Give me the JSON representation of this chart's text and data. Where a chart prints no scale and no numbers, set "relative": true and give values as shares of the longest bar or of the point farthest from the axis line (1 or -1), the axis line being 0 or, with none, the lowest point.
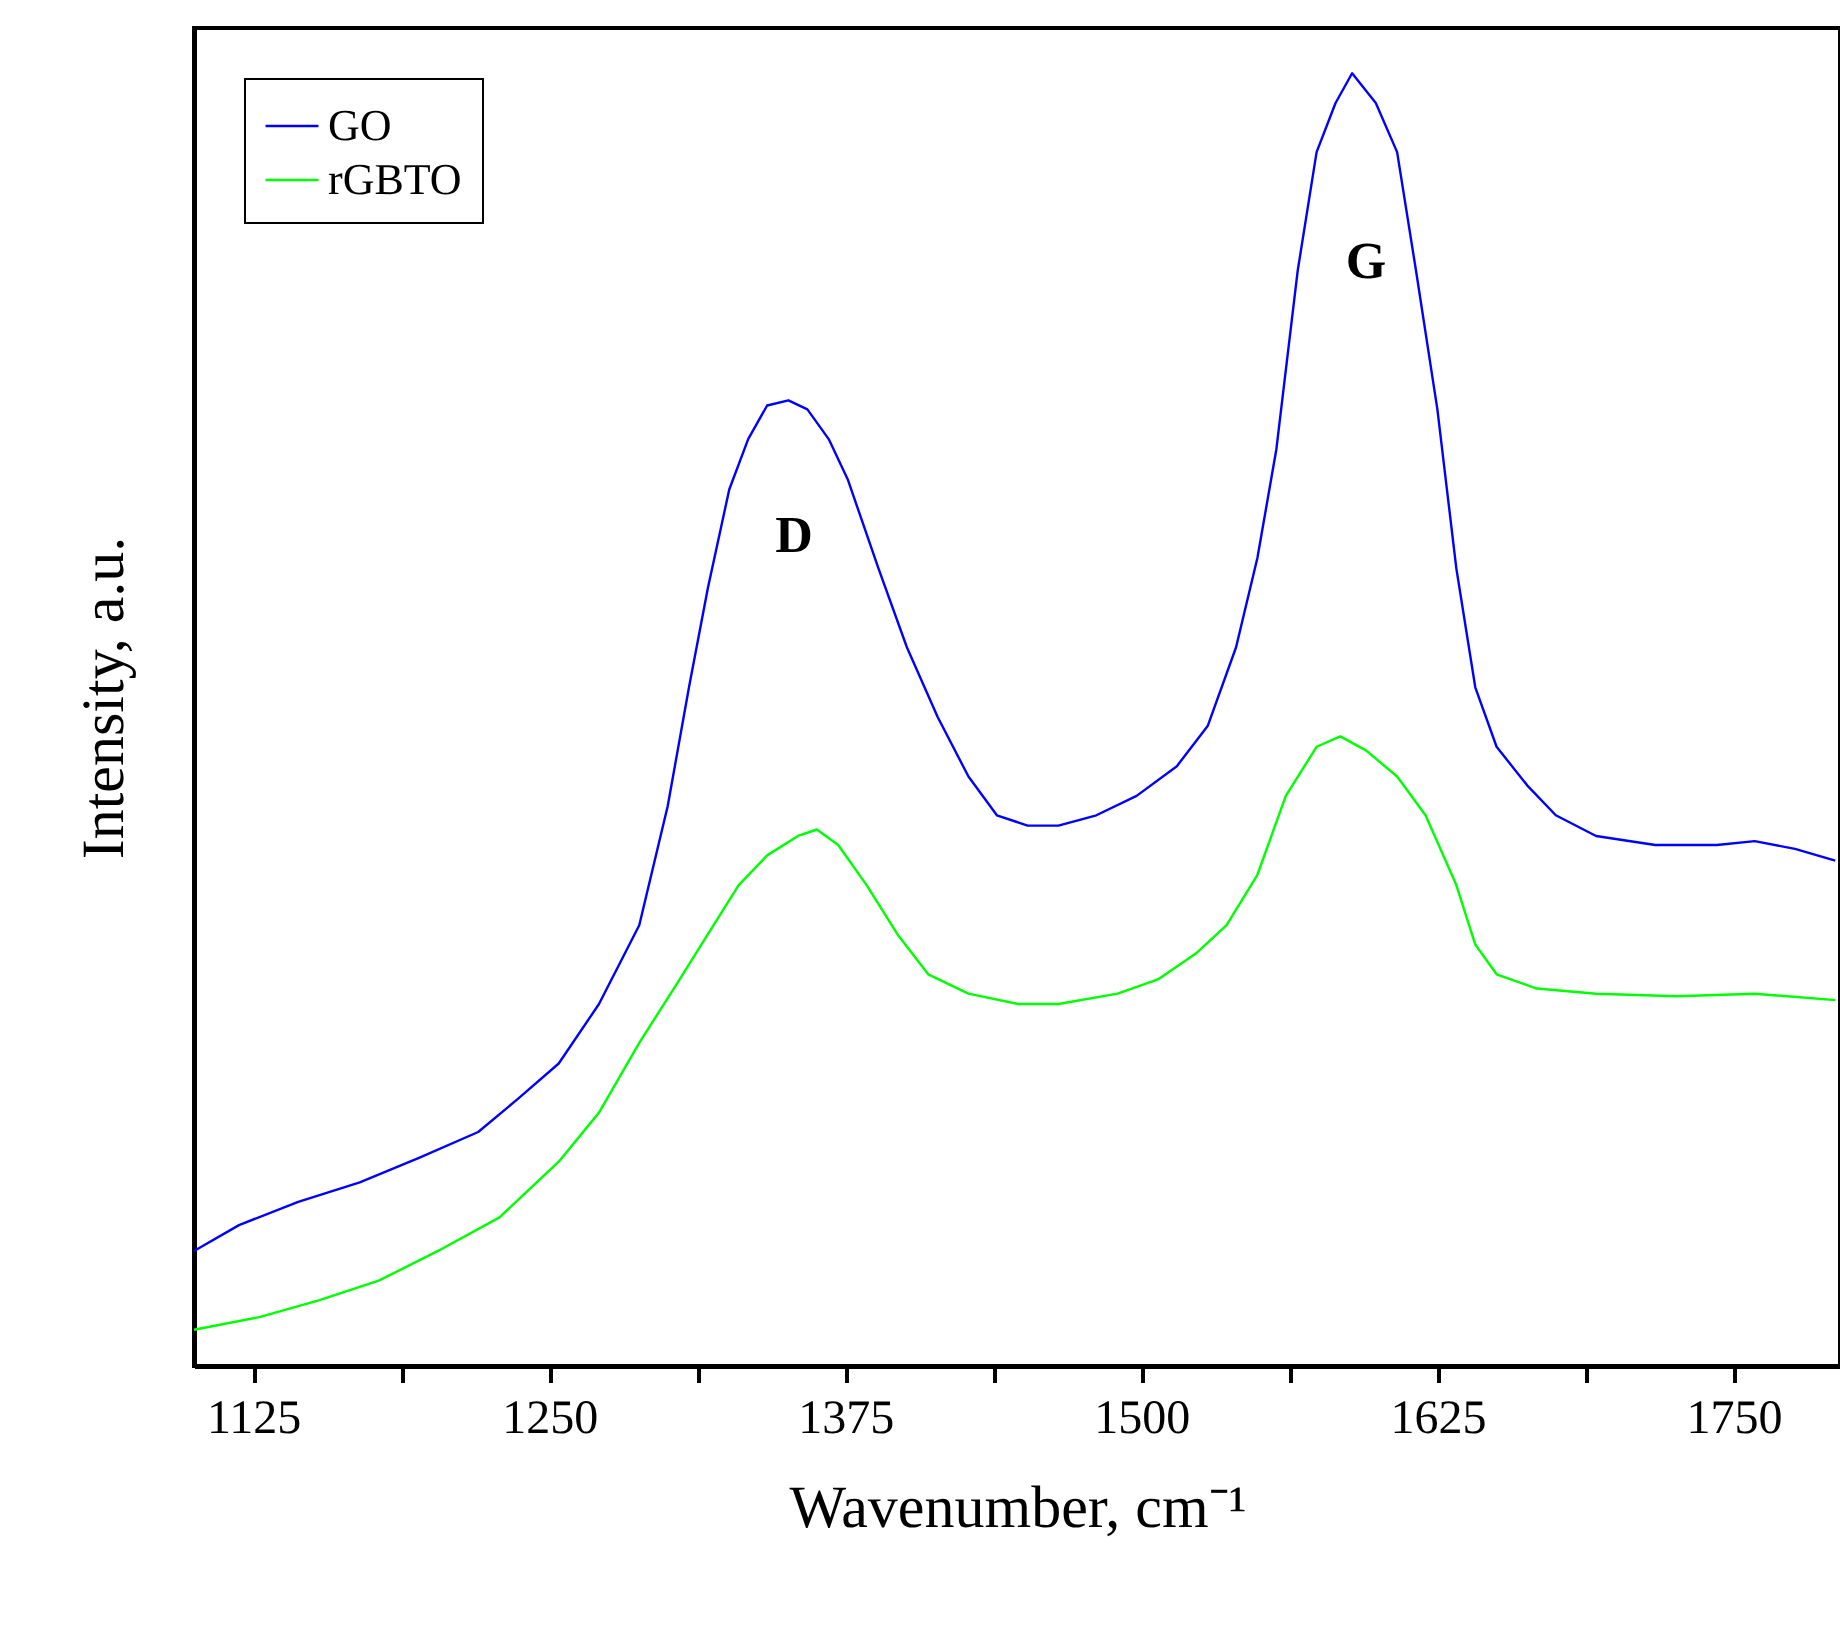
{
  "chart_data": {
    "type": "line",
    "relative": true,
    "xlabel": "Wavenumber, cm⁻¹",
    "ylabel": "Intensity, a.u.",
    "xlim": [
      1100,
      1795
    ],
    "xticks": [
      1125,
      {
        "value": 1187.5,
        "label": null
      },
      1250,
      {
        "value": 1312.5,
        "label": null
      },
      1375,
      {
        "value": 1437.5,
        "label": null
      },
      1500,
      {
        "value": 1562.5,
        "label": null
      },
      1625,
      {
        "value": 1687.5,
        "label": null
      },
      1750
    ],
    "grid": false,
    "legend": "top left",
    "line_style": "solid",
    "marker": "none",
    "annotations": [
      "D",
      "G"
    ],
    "series": [
      {
        "name": "GO",
        "color": "#0000ff",
        "x": [
          1100,
          1119,
          1144,
          1170,
          1195,
          1220,
          1237,
          1254,
          1271,
          1288,
          1300,
          1309,
          1317,
          1326,
          1334,
          1342,
          1351,
          1359,
          1368,
          1376,
          1389,
          1401,
          1414,
          1427,
          1439,
          1452,
          1465,
          1481,
          1498,
          1515,
          1528,
          1540,
          1549,
          1557,
          1566,
          1574,
          1582,
          1589,
          1599,
          1608,
          1616,
          1625,
          1633,
          1641,
          1650,
          1663,
          1675,
          1692,
          1717,
          1743,
          1759,
          1776,
          1793
        ],
        "values": [
          0.089,
          0.109,
          0.127,
          0.142,
          0.161,
          0.181,
          0.207,
          0.234,
          0.28,
          0.341,
          0.433,
          0.525,
          0.602,
          0.678,
          0.717,
          0.743,
          0.747,
          0.74,
          0.717,
          0.686,
          0.617,
          0.556,
          0.502,
          0.456,
          0.426,
          0.418,
          0.418,
          0.426,
          0.441,
          0.464,
          0.495,
          0.556,
          0.625,
          0.709,
          0.847,
          0.939,
          0.977,
          1.0,
          0.977,
          0.939,
          0.847,
          0.74,
          0.617,
          0.525,
          0.479,
          0.449,
          0.426,
          0.41,
          0.403,
          0.403,
          0.406,
          0.4,
          0.391
        ]
      },
      {
        "name": "rGBTO",
        "color": "#00ff00",
        "x": [
          1100,
          1128,
          1153,
          1178,
          1203,
          1229,
          1254,
          1271,
          1288,
          1304,
          1317,
          1330,
          1342,
          1355,
          1363,
          1372,
          1384,
          1397,
          1410,
          1427,
          1448,
          1465,
          1490,
          1507,
          1523,
          1536,
          1549,
          1561,
          1574,
          1584,
          1595,
          1608,
          1620,
          1633,
          1641,
          1650,
          1667,
          1692,
          1726,
          1759,
          1793
        ],
        "values": [
          0.028,
          0.038,
          0.051,
          0.066,
          0.089,
          0.115,
          0.158,
          0.196,
          0.25,
          0.296,
          0.334,
          0.372,
          0.395,
          0.41,
          0.415,
          0.403,
          0.372,
          0.334,
          0.303,
          0.288,
          0.28,
          0.28,
          0.288,
          0.299,
          0.319,
          0.341,
          0.38,
          0.441,
          0.479,
          0.487,
          0.476,
          0.456,
          0.426,
          0.372,
          0.326,
          0.303,
          0.292,
          0.288,
          0.286,
          0.288,
          0.283
        ]
      }
    ]
  }
}
